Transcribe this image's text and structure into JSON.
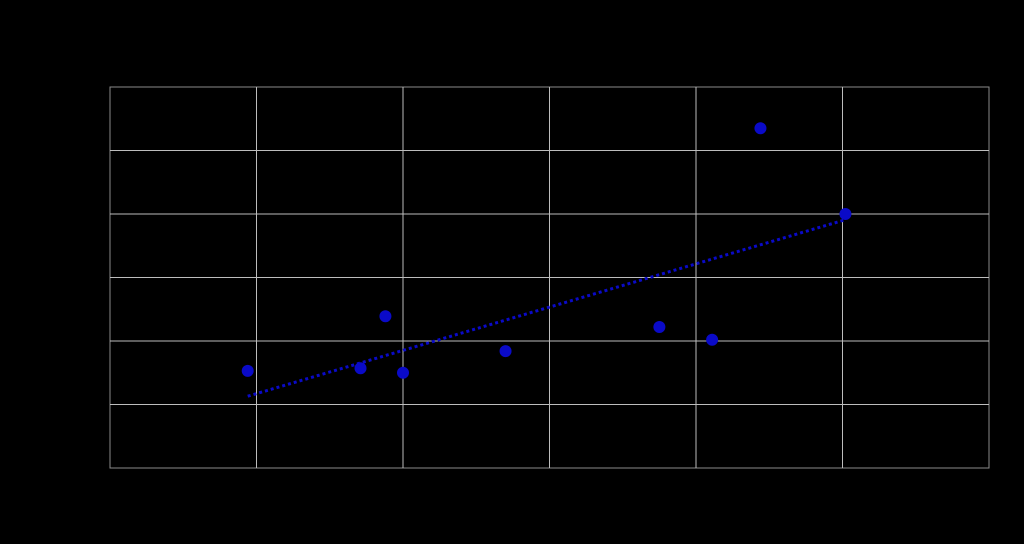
{
  "chart_data": {
    "type": "scatter",
    "series": [
      {
        "color": "#0a0ac8",
        "x": [
          0.94,
          1.71,
          1.88,
          2.0,
          2.7,
          3.75,
          4.11,
          4.44,
          5.02
        ],
        "values": [
          1.53,
          1.57,
          2.39,
          1.5,
          1.84,
          2.22,
          2.02,
          5.35,
          4.0
        ]
      }
    ],
    "trendline": {
      "color": "#0a0ac8",
      "x": [
        0.94,
        5.02
      ],
      "values": [
        1.13,
        3.91
      ]
    },
    "xlim": [
      0,
      6
    ],
    "xticks": [
      1,
      2,
      3,
      4,
      5
    ],
    "ylim": [
      0,
      6
    ],
    "yticks": [
      1,
      2,
      3,
      4,
      5
    ],
    "grid": true
  }
}
